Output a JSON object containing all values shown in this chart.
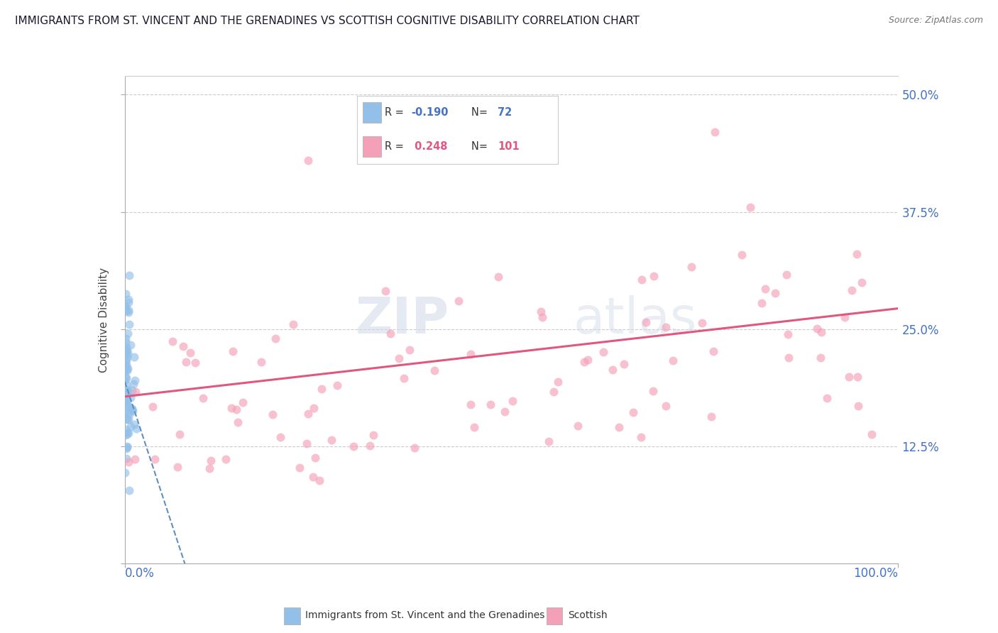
{
  "title": "IMMIGRANTS FROM ST. VINCENT AND THE GRENADINES VS SCOTTISH COGNITIVE DISABILITY CORRELATION CHART",
  "source": "Source: ZipAtlas.com",
  "ylabel": "Cognitive Disability",
  "xlim": [
    0.0,
    1.0
  ],
  "ylim": [
    0.0,
    0.52
  ],
  "yticks": [
    0.0,
    0.125,
    0.25,
    0.375,
    0.5
  ],
  "blue_R": -0.19,
  "blue_N": 72,
  "pink_R": 0.248,
  "pink_N": 101,
  "blue_color": "#92C0E8",
  "pink_color": "#F4A0B8",
  "blue_line_color": "#6090C0",
  "pink_line_color": "#E05880",
  "background_color": "#FFFFFF",
  "grid_color": "#CCCCCC",
  "title_color": "#1a1a2e",
  "axis_label_color": "#4472C4",
  "watermark_zip": "ZIP",
  "watermark_atlas": "atlas",
  "legend_label_blue": "Immigrants from St. Vincent and the Grenadines",
  "legend_label_pink": "Scottish"
}
